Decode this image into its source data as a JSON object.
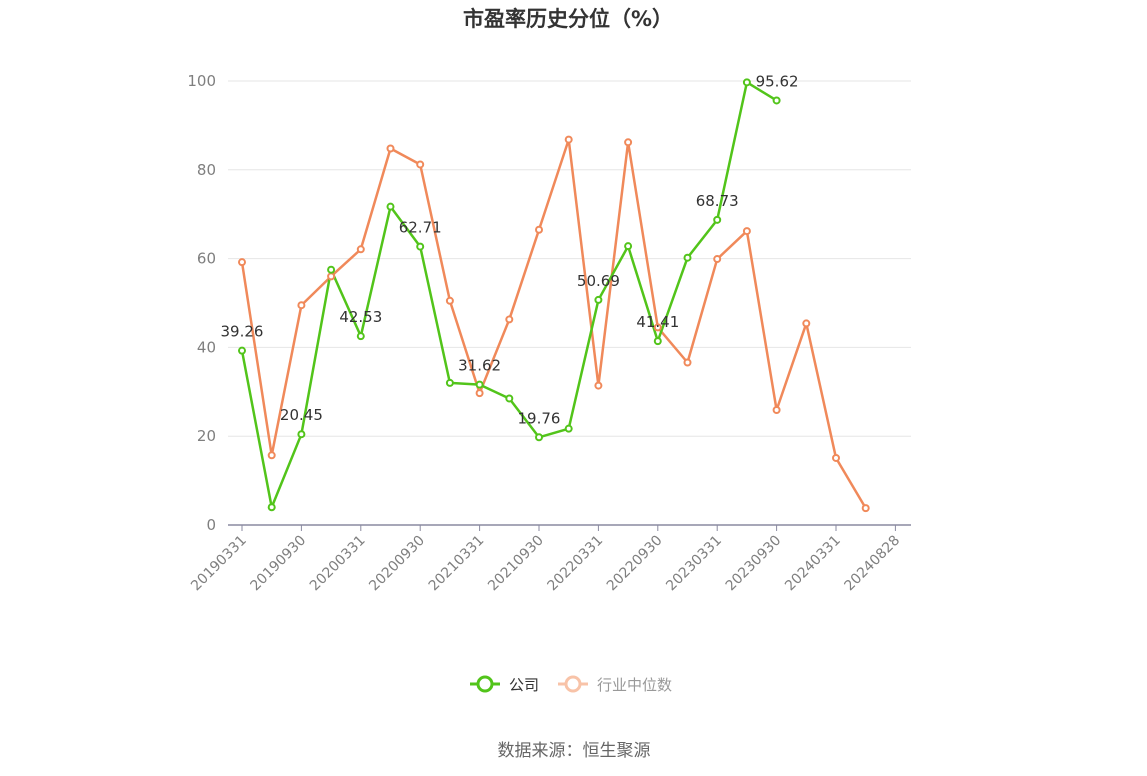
{
  "chart_data": {
    "type": "line",
    "title": "市盈率历史分位（%）",
    "source": "数据来源：恒生聚源",
    "ylim": [
      0,
      100
    ],
    "yticks": [
      0,
      20,
      40,
      60,
      80,
      100
    ],
    "xtick_labels": [
      "20190331",
      "20190930",
      "20200331",
      "20200930",
      "20210331",
      "20210930",
      "20220331",
      "20220930",
      "20230331",
      "20230930",
      "20240331",
      "20240828"
    ],
    "num_points": 22,
    "grid": true,
    "legend_position": "bottom",
    "series": [
      {
        "name": "公司",
        "color": "#52c41a",
        "values": [
          39.26,
          4.0,
          20.45,
          57.5,
          42.53,
          71.7,
          62.71,
          32.0,
          31.62,
          28.5,
          19.76,
          21.7,
          50.69,
          62.8,
          41.41,
          60.2,
          68.73,
          99.7,
          95.62
        ],
        "labels": {
          "0": "39.26",
          "2": "20.45",
          "4": "42.53",
          "6": "62.71",
          "8": "31.62",
          "10": "19.76",
          "12": "50.69",
          "14": "41.41",
          "16": "68.73",
          "18": "95.62"
        }
      },
      {
        "name": "行业中位数",
        "color": "#f0895a",
        "values": [
          59.2,
          15.7,
          49.5,
          56.0,
          62.1,
          84.8,
          81.2,
          50.5,
          29.7,
          46.3,
          66.5,
          86.8,
          31.4,
          86.2,
          44.5,
          36.6,
          59.9,
          66.2,
          25.9,
          45.4,
          15.1,
          3.8
        ]
      }
    ]
  }
}
